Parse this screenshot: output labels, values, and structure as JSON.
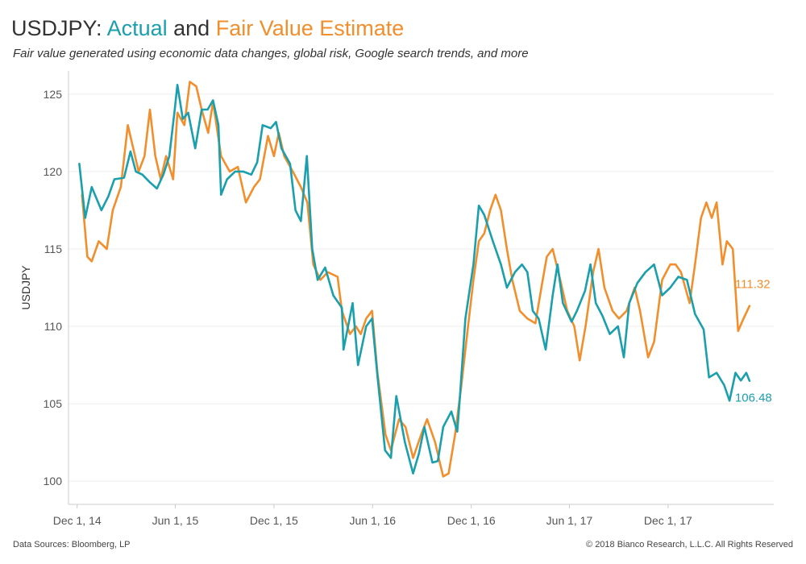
{
  "header": {
    "title_prefix": "USDJPY:",
    "title_actual": "Actual",
    "title_and": "and",
    "title_fair": "Fair Value Estimate",
    "subtitle": "Fair value generated using economic data changes, global risk, Google search trends, and more"
  },
  "footer": {
    "sources": "Data Sources: Bloomberg, LP",
    "copyright": "© 2018 Bianco Research, L.L.C. All Rights Reserved"
  },
  "colors": {
    "actual": "#1a9fad",
    "fair": "#f28e2b",
    "text": "#333333",
    "grid": "#eeeeee",
    "axis": "#cccccc"
  },
  "chart_data": {
    "type": "line",
    "title": "USDJPY: Actual and Fair Value Estimate",
    "ylabel": "USDJPY",
    "xlabel": "",
    "ylim": [
      98.5,
      126.5
    ],
    "xlim": [
      "2014-11-15",
      "2018-06-15"
    ],
    "grid": true,
    "legend": "title",
    "y_ticks": [
      100,
      105,
      110,
      115,
      120,
      125
    ],
    "x_ticks": [
      {
        "date": "2014-12-01",
        "label": "Dec 1, 14"
      },
      {
        "date": "2015-06-01",
        "label": "Jun 1, 15"
      },
      {
        "date": "2015-12-01",
        "label": "Dec 1, 15"
      },
      {
        "date": "2016-06-01",
        "label": "Jun 1, 16"
      },
      {
        "date": "2016-12-01",
        "label": "Dec 1, 16"
      },
      {
        "date": "2017-06-01",
        "label": "Jun 1, 17"
      },
      {
        "date": "2017-12-01",
        "label": "Dec 1, 17"
      }
    ],
    "series": [
      {
        "name": "Actual",
        "color": "#1a9fad",
        "end_label": "106.48",
        "points": [
          [
            "2014-12-05",
            120.5
          ],
          [
            "2014-12-16",
            117.0
          ],
          [
            "2014-12-28",
            119.0
          ],
          [
            "2015-01-15",
            117.5
          ],
          [
            "2015-01-28",
            118.4
          ],
          [
            "2015-02-08",
            119.5
          ],
          [
            "2015-02-26",
            119.6
          ],
          [
            "2015-03-10",
            121.3
          ],
          [
            "2015-03-20",
            120.0
          ],
          [
            "2015-04-01",
            119.8
          ],
          [
            "2015-04-15",
            119.3
          ],
          [
            "2015-04-28",
            118.9
          ],
          [
            "2015-05-10",
            119.8
          ],
          [
            "2015-05-21",
            121.0
          ],
          [
            "2015-05-31",
            124.0
          ],
          [
            "2015-06-05",
            125.6
          ],
          [
            "2015-06-15",
            123.4
          ],
          [
            "2015-06-25",
            123.8
          ],
          [
            "2015-07-08",
            121.5
          ],
          [
            "2015-07-20",
            124.0
          ],
          [
            "2015-07-31",
            124.0
          ],
          [
            "2015-08-10",
            124.6
          ],
          [
            "2015-08-20",
            123.0
          ],
          [
            "2015-08-25",
            118.5
          ],
          [
            "2015-09-05",
            119.5
          ],
          [
            "2015-09-20",
            120.0
          ],
          [
            "2015-10-05",
            120.0
          ],
          [
            "2015-10-20",
            119.8
          ],
          [
            "2015-10-31",
            120.6
          ],
          [
            "2015-11-10",
            123.0
          ],
          [
            "2015-11-25",
            122.8
          ],
          [
            "2015-12-05",
            123.2
          ],
          [
            "2015-12-15",
            121.5
          ],
          [
            "2015-12-31",
            120.5
          ],
          [
            "2016-01-10",
            117.5
          ],
          [
            "2016-01-20",
            116.8
          ],
          [
            "2016-01-31",
            121.0
          ],
          [
            "2016-02-10",
            115.0
          ],
          [
            "2016-02-20",
            113.0
          ],
          [
            "2016-03-05",
            113.8
          ],
          [
            "2016-03-20",
            112.0
          ],
          [
            "2016-04-05",
            111.2
          ],
          [
            "2016-04-08",
            108.5
          ],
          [
            "2016-04-25",
            111.5
          ],
          [
            "2016-05-05",
            107.5
          ],
          [
            "2016-05-20",
            110.0
          ],
          [
            "2016-05-31",
            110.5
          ],
          [
            "2016-06-10",
            106.8
          ],
          [
            "2016-06-24",
            102.0
          ],
          [
            "2016-07-05",
            101.5
          ],
          [
            "2016-07-15",
            105.5
          ],
          [
            "2016-07-31",
            102.5
          ],
          [
            "2016-08-15",
            100.5
          ],
          [
            "2016-08-26",
            101.8
          ],
          [
            "2016-09-05",
            103.5
          ],
          [
            "2016-09-20",
            101.2
          ],
          [
            "2016-09-30",
            101.3
          ],
          [
            "2016-10-10",
            103.5
          ],
          [
            "2016-10-25",
            104.5
          ],
          [
            "2016-11-05",
            103.2
          ],
          [
            "2016-11-09",
            105.0
          ],
          [
            "2016-11-20",
            110.5
          ],
          [
            "2016-12-05",
            114.0
          ],
          [
            "2016-12-15",
            117.8
          ],
          [
            "2016-12-25",
            117.2
          ],
          [
            "2017-01-10",
            115.5
          ],
          [
            "2017-01-25",
            114.0
          ],
          [
            "2017-02-05",
            112.5
          ],
          [
            "2017-02-20",
            113.5
          ],
          [
            "2017-03-05",
            114.0
          ],
          [
            "2017-03-15",
            113.5
          ],
          [
            "2017-03-25",
            111.0
          ],
          [
            "2017-04-05",
            110.5
          ],
          [
            "2017-04-18",
            108.5
          ],
          [
            "2017-05-01",
            112.0
          ],
          [
            "2017-05-10",
            114.0
          ],
          [
            "2017-05-20",
            111.5
          ],
          [
            "2017-06-05",
            110.3
          ],
          [
            "2017-06-15",
            111.0
          ],
          [
            "2017-06-30",
            112.3
          ],
          [
            "2017-07-10",
            114.0
          ],
          [
            "2017-07-20",
            111.5
          ],
          [
            "2017-08-01",
            110.7
          ],
          [
            "2017-08-15",
            109.5
          ],
          [
            "2017-08-30",
            110.0
          ],
          [
            "2017-09-10",
            108.0
          ],
          [
            "2017-09-20",
            111.5
          ],
          [
            "2017-10-05",
            112.8
          ],
          [
            "2017-10-20",
            113.5
          ],
          [
            "2017-11-05",
            114.0
          ],
          [
            "2017-11-20",
            112.0
          ],
          [
            "2017-12-05",
            112.5
          ],
          [
            "2017-12-20",
            113.2
          ],
          [
            "2018-01-05",
            113.0
          ],
          [
            "2018-01-20",
            110.8
          ],
          [
            "2018-02-05",
            109.8
          ],
          [
            "2018-02-15",
            106.7
          ],
          [
            "2018-03-01",
            107.0
          ],
          [
            "2018-03-15",
            106.2
          ],
          [
            "2018-03-25",
            105.2
          ],
          [
            "2018-04-05",
            107.0
          ],
          [
            "2018-04-15",
            106.5
          ],
          [
            "2018-04-25",
            107.0
          ],
          [
            "2018-05-01",
            106.48
          ]
        ]
      },
      {
        "name": "Fair Value Estimate",
        "color": "#f28e2b",
        "end_label": "111.32",
        "points": [
          [
            "2014-12-10",
            118.5
          ],
          [
            "2014-12-20",
            114.5
          ],
          [
            "2014-12-28",
            114.2
          ],
          [
            "2015-01-10",
            115.5
          ],
          [
            "2015-01-25",
            115.0
          ],
          [
            "2015-02-05",
            117.5
          ],
          [
            "2015-02-20",
            119.0
          ],
          [
            "2015-03-05",
            123.0
          ],
          [
            "2015-03-15",
            121.5
          ],
          [
            "2015-03-25",
            120.0
          ],
          [
            "2015-04-05",
            121.0
          ],
          [
            "2015-04-15",
            124.0
          ],
          [
            "2015-04-25",
            121.0
          ],
          [
            "2015-05-05",
            119.5
          ],
          [
            "2015-05-15",
            121.0
          ],
          [
            "2015-05-28",
            119.5
          ],
          [
            "2015-06-05",
            123.8
          ],
          [
            "2015-06-18",
            123.0
          ],
          [
            "2015-06-28",
            125.8
          ],
          [
            "2015-07-10",
            125.5
          ],
          [
            "2015-07-20",
            124.0
          ],
          [
            "2015-08-01",
            122.5
          ],
          [
            "2015-08-10",
            124.5
          ],
          [
            "2015-08-25",
            121.0
          ],
          [
            "2015-09-10",
            120.0
          ],
          [
            "2015-09-25",
            120.3
          ],
          [
            "2015-10-10",
            118.0
          ],
          [
            "2015-10-25",
            119.0
          ],
          [
            "2015-11-05",
            119.5
          ],
          [
            "2015-11-20",
            122.3
          ],
          [
            "2015-12-01",
            121.0
          ],
          [
            "2015-12-10",
            122.5
          ],
          [
            "2015-12-20",
            121.0
          ],
          [
            "2016-01-05",
            120.0
          ],
          [
            "2016-01-20",
            119.0
          ],
          [
            "2016-02-01",
            118.0
          ],
          [
            "2016-02-12",
            114.0
          ],
          [
            "2016-02-25",
            113.0
          ],
          [
            "2016-03-10",
            113.5
          ],
          [
            "2016-03-28",
            113.2
          ],
          [
            "2016-04-05",
            111.0
          ],
          [
            "2016-04-20",
            109.5
          ],
          [
            "2016-05-01",
            110.0
          ],
          [
            "2016-05-10",
            109.5
          ],
          [
            "2016-05-20",
            110.5
          ],
          [
            "2016-05-31",
            111.0
          ],
          [
            "2016-06-10",
            107.0
          ],
          [
            "2016-06-25",
            103.0
          ],
          [
            "2016-07-05",
            102.0
          ],
          [
            "2016-07-20",
            104.0
          ],
          [
            "2016-08-01",
            103.5
          ],
          [
            "2016-08-15",
            101.5
          ],
          [
            "2016-08-30",
            103.0
          ],
          [
            "2016-09-10",
            104.0
          ],
          [
            "2016-09-25",
            102.5
          ],
          [
            "2016-10-05",
            101.0
          ],
          [
            "2016-10-10",
            100.3
          ],
          [
            "2016-10-20",
            100.5
          ],
          [
            "2016-11-01",
            103.0
          ],
          [
            "2016-11-12",
            106.0
          ],
          [
            "2016-11-25",
            110.0
          ],
          [
            "2016-12-05",
            113.0
          ],
          [
            "2016-12-15",
            115.5
          ],
          [
            "2016-12-25",
            116.0
          ],
          [
            "2017-01-05",
            117.5
          ],
          [
            "2017-01-15",
            118.5
          ],
          [
            "2017-01-25",
            117.5
          ],
          [
            "2017-02-05",
            115.0
          ],
          [
            "2017-02-15",
            113.0
          ],
          [
            "2017-03-01",
            111.0
          ],
          [
            "2017-03-15",
            110.5
          ],
          [
            "2017-03-30",
            110.2
          ],
          [
            "2017-04-10",
            112.5
          ],
          [
            "2017-04-20",
            114.5
          ],
          [
            "2017-05-01",
            115.0
          ],
          [
            "2017-05-15",
            113.0
          ],
          [
            "2017-05-28",
            111.0
          ],
          [
            "2017-06-10",
            110.0
          ],
          [
            "2017-06-20",
            107.8
          ],
          [
            "2017-07-01",
            110.0
          ],
          [
            "2017-07-15",
            113.5
          ],
          [
            "2017-07-25",
            115.0
          ],
          [
            "2017-08-05",
            112.5
          ],
          [
            "2017-08-20",
            111.0
          ],
          [
            "2017-09-01",
            110.5
          ],
          [
            "2017-09-15",
            111.0
          ],
          [
            "2017-09-30",
            112.5
          ],
          [
            "2017-10-10",
            111.0
          ],
          [
            "2017-10-25",
            108.0
          ],
          [
            "2017-11-05",
            109.0
          ],
          [
            "2017-11-20",
            113.0
          ],
          [
            "2017-12-05",
            114.0
          ],
          [
            "2017-12-15",
            114.0
          ],
          [
            "2017-12-25",
            113.5
          ],
          [
            "2018-01-10",
            111.5
          ],
          [
            "2018-01-20",
            114.0
          ],
          [
            "2018-01-31",
            117.0
          ],
          [
            "2018-02-10",
            118.0
          ],
          [
            "2018-02-20",
            117.0
          ],
          [
            "2018-03-01",
            118.0
          ],
          [
            "2018-03-12",
            114.0
          ],
          [
            "2018-03-20",
            115.5
          ],
          [
            "2018-03-31",
            115.0
          ],
          [
            "2018-04-10",
            109.7
          ],
          [
            "2018-04-20",
            110.5
          ],
          [
            "2018-05-01",
            111.32
          ]
        ]
      }
    ]
  }
}
